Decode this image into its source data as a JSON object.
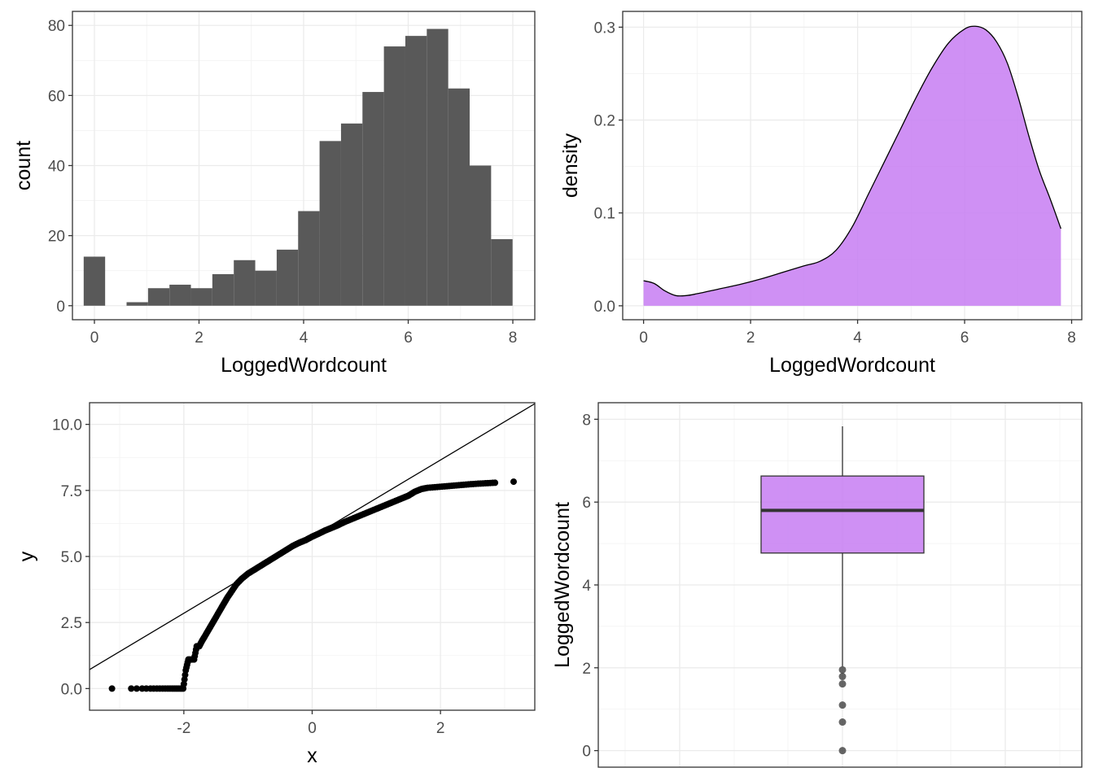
{
  "chart_data": [
    {
      "type": "histogram",
      "xlabel": "LoggedWordcount",
      "ylabel": "count",
      "xlim": [
        -0.42,
        8.42
      ],
      "ylim": [
        -4,
        84
      ],
      "xticks": [
        0,
        2,
        4,
        6,
        8
      ],
      "xtick_labels": [
        "0",
        "2",
        "4",
        "6",
        "8"
      ],
      "yticks": [
        0,
        20,
        40,
        60,
        80
      ],
      "ytick_labels": [
        "0",
        "20",
        "40",
        "60",
        "80"
      ],
      "bin_width": 0.41,
      "bins": [
        {
          "x": 0.0,
          "count": 14
        },
        {
          "x": 0.41,
          "count": 0
        },
        {
          "x": 0.82,
          "count": 1
        },
        {
          "x": 1.23,
          "count": 5
        },
        {
          "x": 1.64,
          "count": 6
        },
        {
          "x": 2.05,
          "count": 5
        },
        {
          "x": 2.46,
          "count": 9
        },
        {
          "x": 2.87,
          "count": 13
        },
        {
          "x": 3.28,
          "count": 10
        },
        {
          "x": 3.69,
          "count": 16
        },
        {
          "x": 4.1,
          "count": 27
        },
        {
          "x": 4.51,
          "count": 47
        },
        {
          "x": 4.92,
          "count": 52
        },
        {
          "x": 5.33,
          "count": 61
        },
        {
          "x": 5.74,
          "count": 74
        },
        {
          "x": 6.15,
          "count": 77
        },
        {
          "x": 6.56,
          "count": 79
        },
        {
          "x": 6.97,
          "count": 62
        },
        {
          "x": 7.38,
          "count": 40
        },
        {
          "x": 7.79,
          "count": 19
        }
      ],
      "bar_color": "#595959",
      "grid": true
    },
    {
      "type": "area",
      "xlabel": "LoggedWordcount",
      "ylabel": "density",
      "xlim": [
        -0.39,
        8.19
      ],
      "ylim": [
        -0.015,
        0.317
      ],
      "xticks": [
        0,
        2,
        4,
        6,
        8
      ],
      "xtick_labels": [
        "0",
        "2",
        "4",
        "6",
        "8"
      ],
      "yticks": [
        0,
        0.1,
        0.2,
        0.3
      ],
      "ytick_labels": [
        "0.0",
        "0.1",
        "0.2",
        "0.3"
      ],
      "x": [
        0,
        0.2,
        0.4,
        0.6,
        0.8,
        1.0,
        1.4,
        1.8,
        2.2,
        2.6,
        3.0,
        3.3,
        3.6,
        3.9,
        4.2,
        4.5,
        4.8,
        5.1,
        5.4,
        5.7,
        6.0,
        6.2,
        6.4,
        6.6,
        6.8,
        7.0,
        7.2,
        7.4,
        7.6,
        7.8
      ],
      "y": [
        0.027,
        0.024,
        0.016,
        0.011,
        0.011,
        0.013,
        0.018,
        0.023,
        0.029,
        0.036,
        0.043,
        0.048,
        0.06,
        0.085,
        0.12,
        0.155,
        0.19,
        0.225,
        0.257,
        0.283,
        0.298,
        0.301,
        0.297,
        0.284,
        0.261,
        0.225,
        0.183,
        0.145,
        0.115,
        0.083
      ],
      "fill_color": "#c77cf2",
      "line_color": "#000000",
      "grid": true
    },
    {
      "type": "scatter",
      "xlabel": "x",
      "ylabel": "y",
      "xlim": [
        -3.47,
        3.47
      ],
      "ylim": [
        -0.82,
        10.82
      ],
      "xticks": [
        -2,
        0,
        2
      ],
      "xtick_labels": [
        "-2",
        "0",
        "2"
      ],
      "yticks": [
        0,
        2.5,
        5,
        7.5,
        10
      ],
      "ytick_labels": [
        "0.0",
        "2.5",
        "5.0",
        "7.5",
        "10.0"
      ],
      "points": [
        [
          -3.12,
          0.0
        ],
        [
          -2.82,
          0.0
        ],
        [
          -2.65,
          0.0
        ],
        [
          -2.52,
          0.0
        ],
        [
          -2.42,
          0.0
        ],
        [
          -2.33,
          0.0
        ],
        [
          -2.25,
          0.0
        ],
        [
          -2.18,
          0.0
        ],
        [
          -2.12,
          0.0
        ],
        [
          -2.06,
          0.0
        ],
        [
          -2.01,
          0.0
        ],
        [
          -1.97,
          0.69
        ],
        [
          -1.93,
          1.1
        ],
        [
          -1.88,
          1.1
        ],
        [
          -1.84,
          1.1
        ],
        [
          -1.8,
          1.6
        ],
        [
          -1.76,
          1.6
        ],
        [
          -1.72,
          1.79
        ],
        [
          -1.68,
          1.95
        ],
        [
          -1.62,
          2.2
        ],
        [
          -1.56,
          2.45
        ],
        [
          -1.5,
          2.7
        ],
        [
          -1.44,
          2.95
        ],
        [
          -1.38,
          3.2
        ],
        [
          -1.32,
          3.45
        ],
        [
          -1.25,
          3.7
        ],
        [
          -1.18,
          3.95
        ],
        [
          -1.1,
          4.15
        ],
        [
          -1.0,
          4.35
        ],
        [
          -0.9,
          4.5
        ],
        [
          -0.8,
          4.65
        ],
        [
          -0.7,
          4.8
        ],
        [
          -0.6,
          4.95
        ],
        [
          -0.5,
          5.1
        ],
        [
          -0.4,
          5.25
        ],
        [
          -0.3,
          5.4
        ],
        [
          -0.2,
          5.52
        ],
        [
          -0.1,
          5.62
        ],
        [
          0.0,
          5.75
        ],
        [
          0.1,
          5.86
        ],
        [
          0.2,
          5.98
        ],
        [
          0.3,
          6.08
        ],
        [
          0.4,
          6.18
        ],
        [
          0.5,
          6.3
        ],
        [
          0.6,
          6.4
        ],
        [
          0.7,
          6.5
        ],
        [
          0.8,
          6.6
        ],
        [
          0.9,
          6.7
        ],
        [
          1.0,
          6.8
        ],
        [
          1.1,
          6.9
        ],
        [
          1.2,
          7.0
        ],
        [
          1.3,
          7.1
        ],
        [
          1.4,
          7.2
        ],
        [
          1.5,
          7.3
        ],
        [
          1.6,
          7.45
        ],
        [
          1.7,
          7.55
        ],
        [
          1.8,
          7.6
        ],
        [
          1.95,
          7.63
        ],
        [
          2.1,
          7.66
        ],
        [
          2.25,
          7.69
        ],
        [
          2.4,
          7.72
        ],
        [
          2.55,
          7.75
        ],
        [
          2.7,
          7.77
        ],
        [
          2.85,
          7.79
        ],
        [
          3.14,
          7.83
        ]
      ],
      "reference_line": {
        "intercept": 5.75,
        "slope": 1.45
      },
      "point_color": "#000000",
      "grid": true
    },
    {
      "type": "boxplot",
      "xlabel": "",
      "ylabel": "LoggedWordcount",
      "ylim": [
        -0.4,
        8.4
      ],
      "yticks": [
        0,
        2,
        4,
        6,
        8
      ],
      "ytick_labels": [
        "0",
        "2",
        "4",
        "6",
        "8"
      ],
      "lower_whisker": 2.03,
      "q1": 4.77,
      "median": 5.8,
      "q3": 6.63,
      "upper_whisker": 7.83,
      "outliers": [
        1.95,
        1.79,
        1.61,
        1.1,
        0.69,
        0.0
      ],
      "fill_color": "#c77cf2",
      "grid": true
    }
  ]
}
